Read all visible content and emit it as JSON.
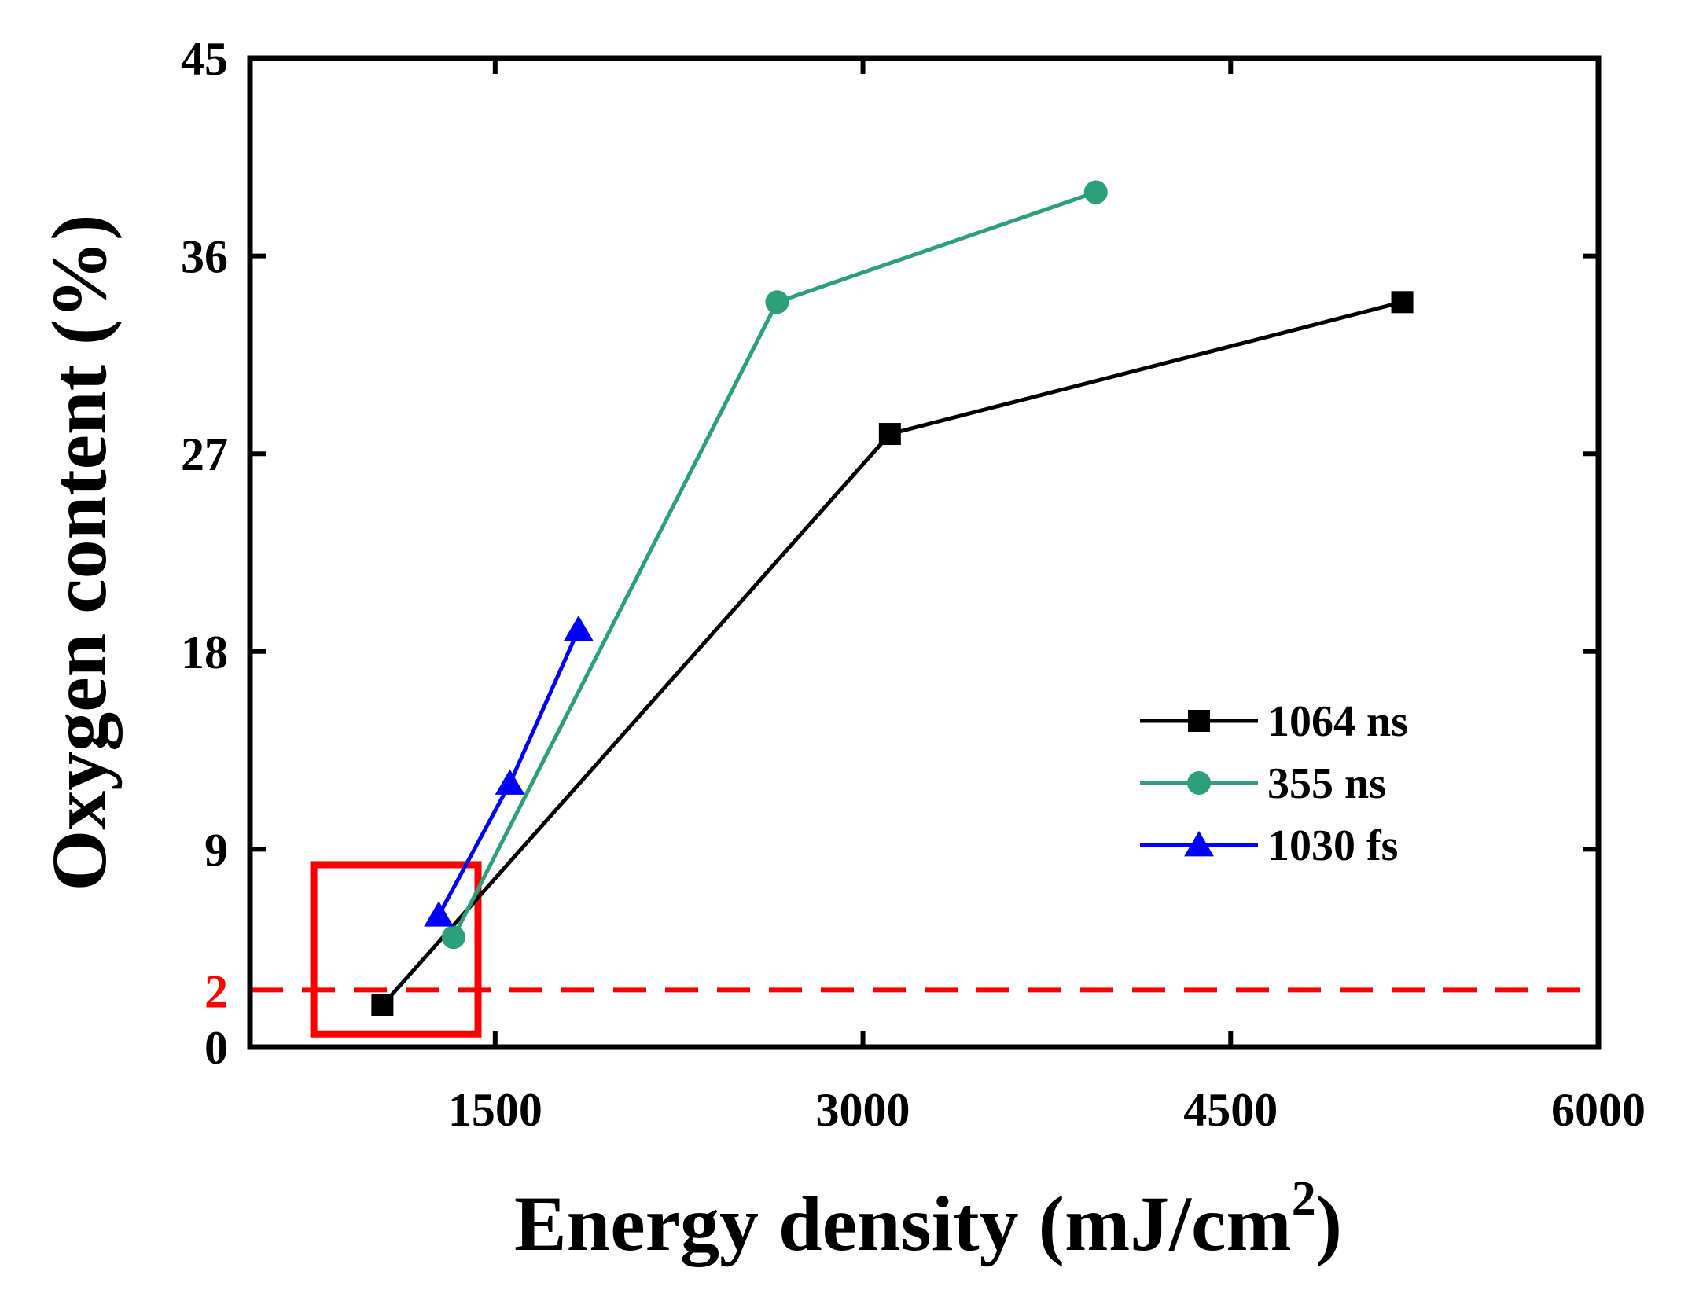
{
  "chart_data": {
    "type": "line",
    "title": "",
    "xlabel": "Energy density (mJ/cm",
    "xlabel_superscript": "2",
    "xlabel_suffix": ")",
    "ylabel": "Oxygen content (%)",
    "xlim": [
      500,
      6000
    ],
    "ylim": [
      0,
      45
    ],
    "xticks": [
      1500,
      3000,
      4500,
      6000
    ],
    "yticks": [
      0,
      9,
      18,
      27,
      36,
      45
    ],
    "grid": false,
    "legend_position": "center-right",
    "series": [
      {
        "name": "1064 ns",
        "color": "#000000",
        "marker": "square",
        "x": [
          1040,
          3110,
          5200
        ],
        "y": [
          1.9,
          27.9,
          33.9
        ]
      },
      {
        "name": "355 ns",
        "color": "#2ca07a",
        "marker": "circle",
        "x": [
          1330,
          2650,
          3950
        ],
        "y": [
          5.0,
          33.9,
          38.9
        ]
      },
      {
        "name": "1030 fs",
        "color": "#0000ff",
        "marker": "triangle",
        "x": [
          1270,
          1560,
          1840
        ],
        "y": [
          6.0,
          12.0,
          19.0
        ]
      }
    ],
    "reference_line": {
      "y": 2.6,
      "label": "2",
      "color": "#ff0000",
      "style": "dashed"
    },
    "highlight_box": {
      "x_range": [
        760,
        1430
      ],
      "y_range": [
        0.6,
        8.3
      ],
      "color": "#ff0000"
    }
  }
}
